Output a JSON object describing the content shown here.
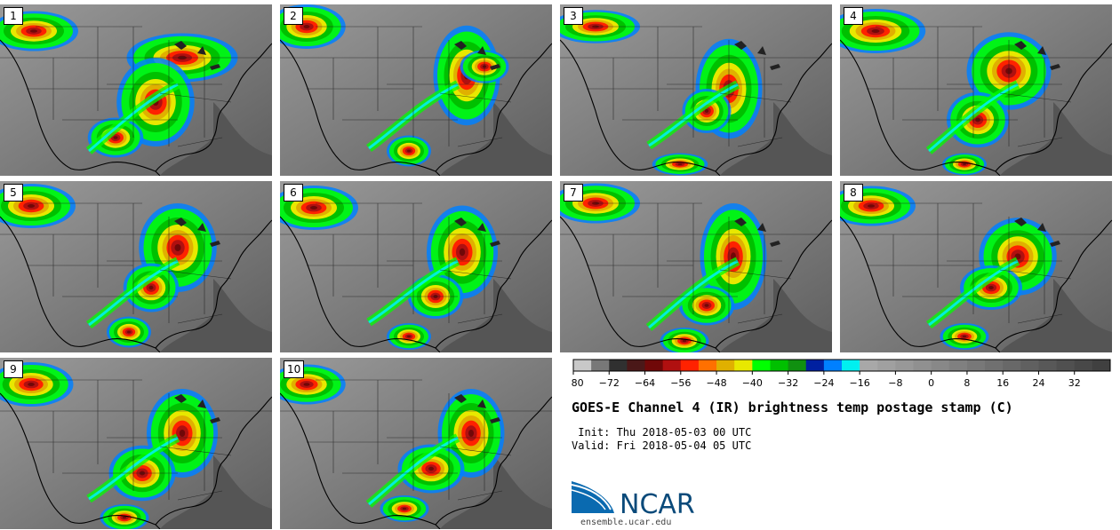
{
  "panels": [
    {
      "label": "1"
    },
    {
      "label": "2"
    },
    {
      "label": "3"
    },
    {
      "label": "4"
    },
    {
      "label": "5"
    },
    {
      "label": "6"
    },
    {
      "label": "7"
    },
    {
      "label": "8"
    },
    {
      "label": "9"
    },
    {
      "label": "10"
    }
  ],
  "colorbar": {
    "min": -80,
    "step": 4,
    "colors": [
      "#c8c8c8",
      "#787878",
      "#303030",
      "#4a1818",
      "#700808",
      "#b01010",
      "#ff2200",
      "#ff7000",
      "#e0b000",
      "#e8e800",
      "#00ff00",
      "#00c000",
      "#109010",
      "#0020a0",
      "#0080ff",
      "#00f0f0",
      "#a8a8a8",
      "#a0a0a0",
      "#989898",
      "#909090",
      "#888888",
      "#808080",
      "#787878",
      "#707070",
      "#686868",
      "#606060",
      "#585858",
      "#505050",
      "#484848",
      "#404040"
    ],
    "tick_labels": [
      "−80",
      "−72",
      "−64",
      "−56",
      "−48",
      "−40",
      "−32",
      "−24",
      "−16",
      "−8",
      "0",
      "8",
      "16",
      "24",
      "32"
    ]
  },
  "title": "GOES-E Channel 4 (IR) brightness temp postage stamp (C)",
  "init_line": " Init: Thu 2018-05-03 00 UTC",
  "valid_line": "Valid: Fri 2018-05-04 05 UTC",
  "logo": {
    "text": "NCAR",
    "color": "#0a4a7a",
    "swoosh_color": "#0a6ab0"
  },
  "site": "ensemble.ucar.edu"
}
